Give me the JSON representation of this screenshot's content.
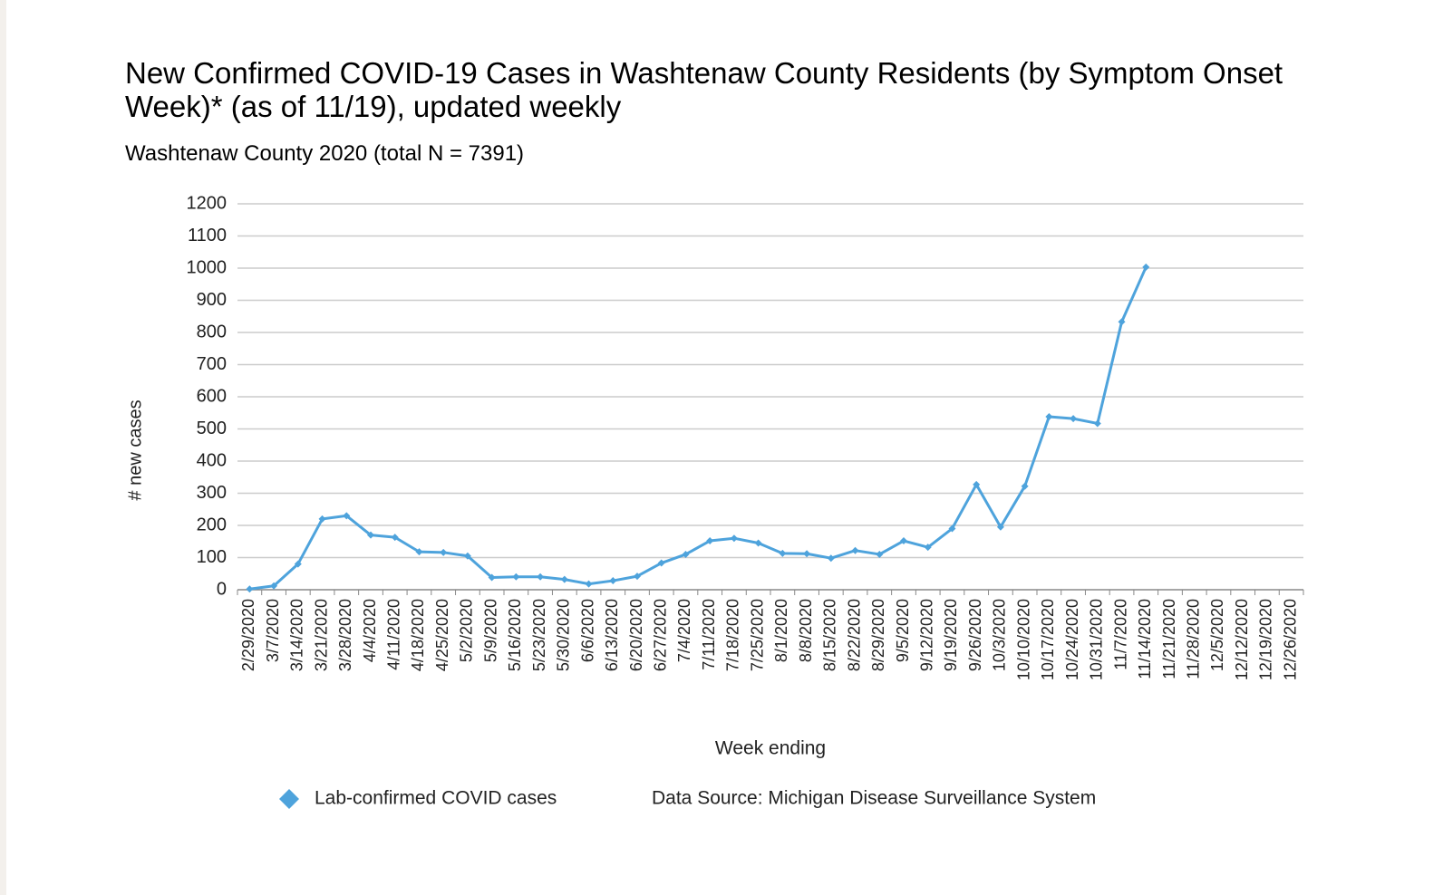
{
  "chart_data": {
    "type": "line",
    "title": "New Confirmed COVID-19 Cases in Washtenaw County Residents (by Symptom Onset Week)* (as of 11/19), updated weekly",
    "subtitle": "Washtenaw County 2020 (total N = 7391)",
    "x_label": "Week ending",
    "y_label": "# new cases",
    "note": "Data Source: Michigan Disease Surveillance System",
    "categories": [
      "2/29/2020",
      "3/7/2020",
      "3/14/2020",
      "3/21/2020",
      "3/28/2020",
      "4/4/2020",
      "4/11/2020",
      "4/18/2020",
      "4/25/2020",
      "5/2/2020",
      "5/9/2020",
      "5/16/2020",
      "5/23/2020",
      "5/30/2020",
      "6/6/2020",
      "6/13/2020",
      "6/20/2020",
      "6/27/2020",
      "7/4/2020",
      "7/11/2020",
      "7/18/2020",
      "7/25/2020",
      "8/1/2020",
      "8/8/2020",
      "8/15/2020",
      "8/22/2020",
      "8/29/2020",
      "9/5/2020",
      "9/12/2020",
      "9/19/2020",
      "9/26/2020",
      "10/3/2020",
      "10/10/2020",
      "10/17/2020",
      "10/24/2020",
      "10/31/2020",
      "11/7/2020",
      "11/14/2020",
      "11/21/2020",
      "11/28/2020",
      "12/5/2020",
      "12/12/2020",
      "12/19/2020",
      "12/26/2020"
    ],
    "series": [
      {
        "name": "Lab-confirmed COVID cases",
        "color": "#4ea3dc",
        "values": [
          2,
          12,
          80,
          220,
          230,
          170,
          163,
          118,
          116,
          105,
          38,
          40,
          40,
          32,
          18,
          28,
          42,
          83,
          110,
          152,
          160,
          145,
          113,
          112,
          98,
          122,
          110,
          152,
          132,
          190,
          327,
          195,
          322,
          538,
          532,
          517,
          833,
          1003,
          null,
          null,
          null,
          null,
          null,
          null
        ]
      }
    ],
    "ylim": [
      0,
      1200
    ],
    "yticks": [
      0,
      100,
      200,
      300,
      400,
      500,
      600,
      700,
      800,
      900,
      1000,
      1100,
      1200
    ],
    "grid": true,
    "legend": "bottom"
  }
}
